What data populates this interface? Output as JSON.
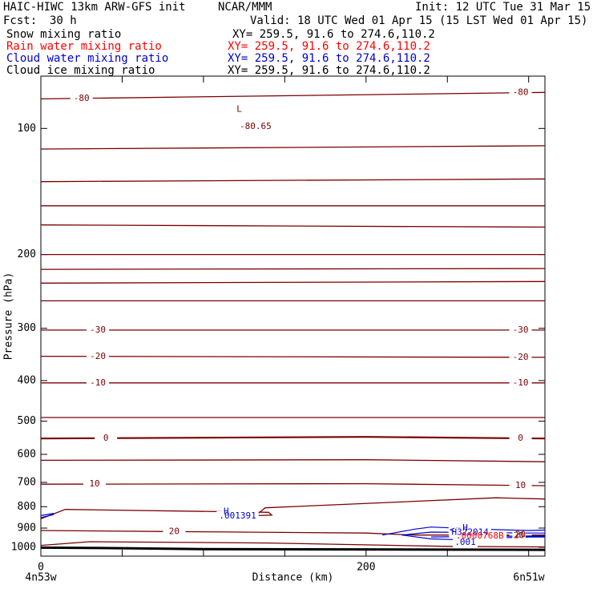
{
  "header": {
    "model": "HAIC-HIWC 13km ARW-GFS init",
    "center": "NCAR/MMM",
    "init": "Init: 12 UTC Tue 31 Mar 15",
    "fcst_label": "Fcst:",
    "fcst_value": "30 h",
    "valid": "Valid: 18 UTC Wed 01 Apr 15 (15 LST Wed 01 Apr 15)"
  },
  "legend": [
    {
      "name": "Snow mixing ratio",
      "xy": "XY= 259.5, 91.6 to 274.6,110.2",
      "color": "#000000"
    },
    {
      "name": "Rain water mixing ratio",
      "xy": "XY= 259.5, 91.6 to 274.6,110.2",
      "color": "#ff0000"
    },
    {
      "name": "Cloud water mixing ratio",
      "xy": "XY= 259.5, 91.6 to 274.6,110.2",
      "color": "#0000cc"
    },
    {
      "name": "Cloud ice mixing ratio",
      "xy": "XY= 259.5, 91.6 to 274.6,110.2",
      "color": "#000000"
    }
  ],
  "chart_data": {
    "type": "line",
    "xlabel": "Distance (km)",
    "ylabel": "Pressure (hPa)",
    "xlim": [
      0,
      310
    ],
    "ylim": [
      1050,
      75
    ],
    "y_scale": "log",
    "x_ticks": [
      0,
      50,
      100,
      150,
      200,
      250,
      300
    ],
    "x_tick_labels": [
      "0",
      "",
      "",
      "",
      "200",
      "",
      ""
    ],
    "y_ticks": [
      100,
      200,
      300,
      400,
      500,
      600,
      700,
      800,
      900,
      1000
    ],
    "y_tick_labels": [
      "100",
      "200",
      "300",
      "400",
      "500",
      "600",
      "700",
      "800",
      "900",
      "1000"
    ],
    "endpoints": {
      "left": "4n53w",
      "right": "6n51w"
    },
    "colors": {
      "temperature": "#7a0000",
      "cloud_water": "#0000cc",
      "rain": "#ff0000",
      "ground": "#000000"
    },
    "temperature_contours": [
      {
        "points": [
          [
            0,
            85
          ],
          [
            310,
            82
          ]
        ],
        "label": "-80",
        "label_x": [
          25,
          295
        ]
      },
      {
        "points": [
          [
            0,
            112
          ],
          [
            310,
            110
          ]
        ]
      },
      {
        "points": [
          [
            0,
            134
          ],
          [
            310,
            132
          ]
        ]
      },
      {
        "points": [
          [
            0,
            153
          ],
          [
            310,
            153
          ]
        ]
      },
      {
        "points": [
          [
            0,
            170
          ],
          [
            310,
            172
          ]
        ]
      },
      {
        "points": [
          [
            0,
            200
          ],
          [
            310,
            200
          ]
        ]
      },
      {
        "points": [
          [
            0,
            217
          ],
          [
            310,
            216
          ]
        ]
      },
      {
        "points": [
          [
            0,
            234
          ],
          [
            310,
            232
          ]
        ]
      },
      {
        "points": [
          [
            0,
            258
          ],
          [
            310,
            258
          ]
        ]
      },
      {
        "points": [
          [
            0,
            303
          ],
          [
            310,
            303
          ]
        ],
        "label": "-30",
        "label_x": [
          35,
          295
        ]
      },
      {
        "points": [
          [
            0,
            350
          ],
          [
            310,
            352
          ]
        ],
        "label": "-20",
        "label_x": [
          35,
          295
        ]
      },
      {
        "points": [
          [
            0,
            405
          ],
          [
            310,
            405
          ]
        ],
        "label": "-10",
        "label_x": [
          35,
          295
        ]
      },
      {
        "points": [
          [
            0,
            490
          ],
          [
            310,
            490
          ]
        ]
      },
      {
        "points": [
          [
            0,
            550
          ],
          [
            200,
            545
          ],
          [
            310,
            550
          ]
        ],
        "label": "0",
        "label_x": [
          40,
          295
        ]
      },
      {
        "points": [
          [
            0,
            620
          ],
          [
            200,
            618
          ],
          [
            310,
            625
          ]
        ]
      },
      {
        "points": [
          [
            0,
            707
          ],
          [
            200,
            705
          ],
          [
            310,
            713
          ]
        ],
        "label": "10",
        "label_x": [
          33,
          295
        ]
      },
      {
        "points": [
          [
            0,
            855
          ],
          [
            15,
            812
          ],
          [
            140,
            825
          ],
          [
            142,
            838
          ],
          [
            132,
            840
          ],
          [
            138,
            805
          ],
          [
            280,
            762
          ],
          [
            310,
            767
          ]
        ]
      },
      {
        "points": [
          [
            0,
            912
          ],
          [
            80,
            917
          ],
          [
            200,
            925
          ],
          [
            230,
            935
          ],
          [
            310,
            935
          ]
        ],
        "label": "20",
        "label_x": [
          82,
          295
        ]
      },
      {
        "points": [
          [
            0,
            990
          ],
          [
            30,
            970
          ],
          [
            140,
            977
          ],
          [
            250,
            995
          ],
          [
            310,
            998
          ]
        ]
      }
    ],
    "ground": {
      "points": [
        [
          0,
          1002
        ],
        [
          50,
          1005
        ],
        [
          100,
          1010
        ],
        [
          200,
          1012
        ],
        [
          310,
          1014
        ]
      ]
    },
    "cloud_water_contours": [
      {
        "points": [
          [
            0,
            840
          ],
          [
            8,
            830
          ]
        ]
      },
      {
        "points": [
          [
            0,
            850
          ],
          [
            8,
            835
          ]
        ]
      },
      {
        "points": [
          [
            210,
            935
          ],
          [
            230,
            905
          ],
          [
            240,
            895
          ],
          [
            270,
            905
          ],
          [
            300,
            912
          ],
          [
            310,
            910
          ]
        ]
      },
      {
        "points": [
          [
            222,
            935
          ],
          [
            240,
            920
          ],
          [
            270,
            922
          ],
          [
            300,
            925
          ],
          [
            310,
            925
          ]
        ]
      },
      {
        "points": [
          [
            240,
            945
          ],
          [
            270,
            942
          ],
          [
            300,
            940
          ],
          [
            310,
            940
          ]
        ]
      },
      {
        "points": [
          [
            222,
            935
          ],
          [
            240,
            955
          ],
          [
            260,
            960
          ],
          [
            280,
            950
          ],
          [
            300,
            945
          ],
          [
            310,
            945
          ]
        ]
      }
    ],
    "annotations": [
      {
        "text": "L",
        "x": 122,
        "p": 90,
        "color": "#7a0000"
      },
      {
        "text": "-80.65",
        "x": 132,
        "p": 99,
        "color": "#7a0000"
      },
      {
        "text": "H",
        "x": 114,
        "p": 822,
        "color": "#0000cc"
      },
      {
        "text": ".001391",
        "x": 121,
        "p": 842,
        "color": "#0000cc"
      },
      {
        "text": "H",
        "x": 261,
        "p": 900,
        "color": "#0000cc"
      },
      {
        "text": "<",
        "x": 253,
        "p": 910,
        "color": "#0000cc"
      },
      {
        "text": "H322014",
        "x": 264,
        "p": 923,
        "color": "#0000cc"
      },
      {
        "text": ".0000768B",
        "x": 270,
        "p": 940,
        "color": "#ff0000"
      },
      {
        "text": "20",
        "x": 294,
        "p": 938,
        "color": "#7a0000"
      },
      {
        "text": ".001",
        "x": 261,
        "p": 975,
        "color": "#0000cc"
      }
    ]
  }
}
